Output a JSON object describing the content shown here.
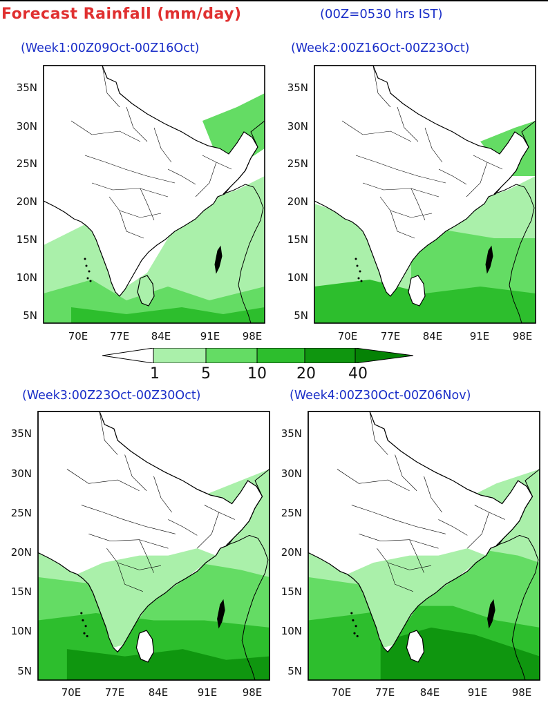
{
  "header": {
    "title": "Forecast Rainfall (mm/day)",
    "subtitle": "(00Z=0530 hrs IST)"
  },
  "panels": [
    {
      "title": "(Week1:00Z09Oct-00Z16Oct)"
    },
    {
      "title": "(Week2:00Z16Oct-00Z23Oct)"
    },
    {
      "title": "(Week3:00Z23Oct-00Z30Oct)"
    },
    {
      "title": "(Week4:00Z30Oct-00Z06Nov)"
    }
  ],
  "axes": {
    "lat_labels": [
      "35N",
      "30N",
      "25N",
      "20N",
      "15N",
      "10N",
      "5N"
    ],
    "lon_labels": [
      "70E",
      "77E",
      "84E",
      "91E",
      "98E"
    ]
  },
  "colorbar": {
    "labels": [
      "1",
      "5",
      "10",
      "20",
      "40"
    ],
    "colors": [
      "#ffffff",
      "#aaf0aa",
      "#64dc64",
      "#2dbe2d",
      "#0f960f",
      "#058205"
    ]
  },
  "palette": {
    "title_color": "#e03030",
    "subtitle_color": "#1a2ec8",
    "land_white": "#ffffff"
  }
}
